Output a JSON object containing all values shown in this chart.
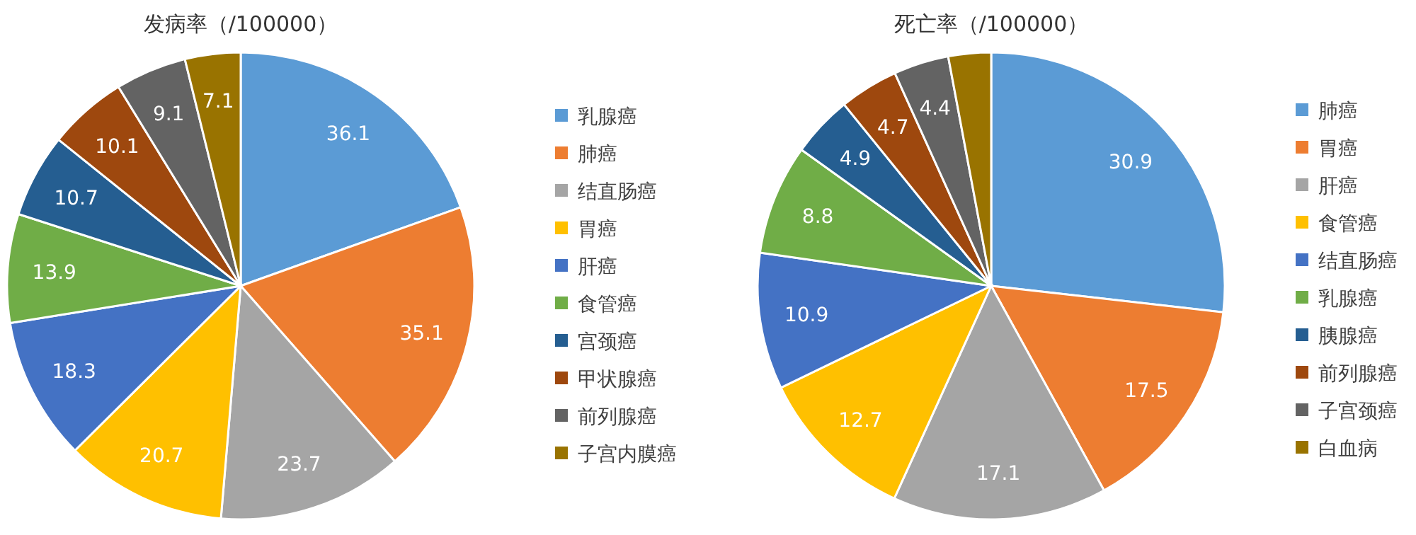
{
  "chart_data": [
    {
      "type": "pie",
      "title": "发病率（/100000）",
      "categories": [
        "乳腺癌",
        "肺癌",
        "结直肠癌",
        "胃癌",
        "肝癌",
        "食管癌",
        "宫颈癌",
        "甲状腺癌",
        "前列腺癌",
        "子宫内膜癌"
      ],
      "values": [
        36.1,
        35.1,
        23.7,
        20.7,
        18.3,
        13.9,
        10.7,
        10.1,
        9.1,
        7.1
      ],
      "colors": [
        "#5b9bd5",
        "#ed7d31",
        "#a5a5a5",
        "#ffc000",
        "#4472c4",
        "#70ad47",
        "#255e91",
        "#9e480e",
        "#636363",
        "#997300"
      ],
      "data_labels": true,
      "legend": "right"
    },
    {
      "type": "pie",
      "title": "死亡率（/100000）",
      "categories": [
        "肺癌",
        "胃癌",
        "肝癌",
        "食管癌",
        "结直肠癌",
        "乳腺癌",
        "胰腺癌",
        "前列腺癌",
        "子宫颈癌",
        "白血病"
      ],
      "values": [
        30.9,
        17.5,
        17.1,
        12.7,
        10.9,
        8.8,
        4.9,
        4.7,
        4.4,
        3.4
      ],
      "colors": [
        "#5b9bd5",
        "#ed7d31",
        "#a5a5a5",
        "#ffc000",
        "#4472c4",
        "#70ad47",
        "#255e91",
        "#9e480e",
        "#636363",
        "#997300"
      ],
      "value_labels": [
        "30.9",
        "17.5",
        "17.1",
        "12.7",
        "10.9",
        "8.8",
        "4.9",
        "4.7",
        "4.4",
        null
      ],
      "legend": "right"
    }
  ]
}
